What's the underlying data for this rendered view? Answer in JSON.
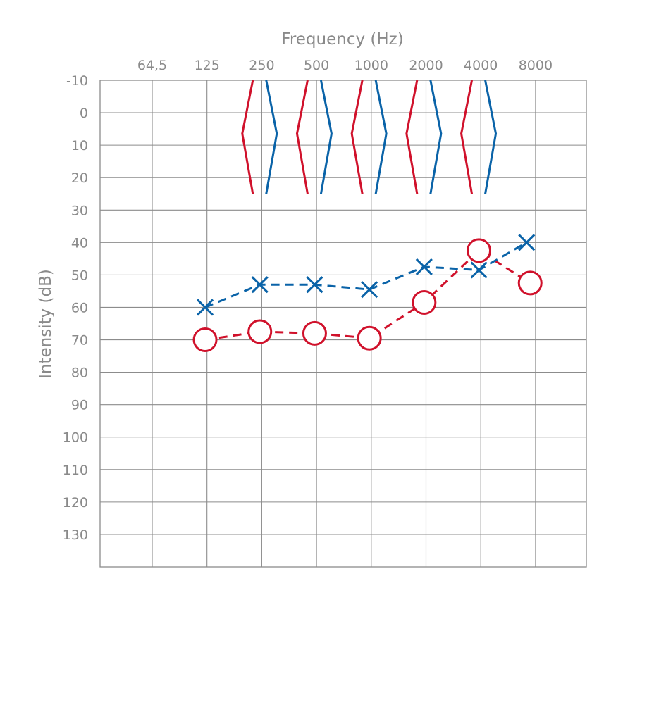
{
  "chart_data": {
    "type": "line",
    "xlabel": "Frequency (Hz)",
    "ylabel": "Intensity (dB)",
    "x_ticks": [
      "64,5",
      "125",
      "250",
      "500",
      "1000",
      "2000",
      "4000",
      "8000"
    ],
    "y_ticks": [
      "-10",
      "0",
      "10",
      "20",
      "30",
      "40",
      "50",
      "60",
      "70",
      "80",
      "90",
      "100",
      "110",
      "120",
      "130"
    ],
    "ylim": [
      -10,
      140
    ],
    "y_inverted": true,
    "grid": true,
    "series": [
      {
        "marker": "x",
        "color": "#0a63a8",
        "line_style": "dashed",
        "points": [
          {
            "x": 125,
            "y": 60
          },
          {
            "x": 250,
            "y": 53
          },
          {
            "x": 500,
            "y": 53
          },
          {
            "x": 1000,
            "y": 54.5
          },
          {
            "x": 2000,
            "y": 47.5
          },
          {
            "x": 4000,
            "y": 48.5
          },
          {
            "x": 8000,
            "y": 40
          }
        ]
      },
      {
        "marker": "o",
        "color": "#d0112b",
        "line_style": "dashed",
        "points": [
          {
            "x": 125,
            "y": 70
          },
          {
            "x": 250,
            "y": 67.5
          },
          {
            "x": 500,
            "y": 68
          },
          {
            "x": 1000,
            "y": 69.5
          },
          {
            "x": 2000,
            "y": 58.5
          },
          {
            "x": 4000,
            "y": 42.5
          },
          {
            "x": 8000,
            "y": 52.5
          }
        ]
      }
    ],
    "bone_conduction_markers": {
      "frequencies": [
        250,
        500,
        1000,
        2000,
        4000
      ],
      "left_bracket_color": "#d0112b",
      "right_bracket_color": "#0a63a8",
      "range_db": [
        -10,
        25
      ]
    }
  }
}
